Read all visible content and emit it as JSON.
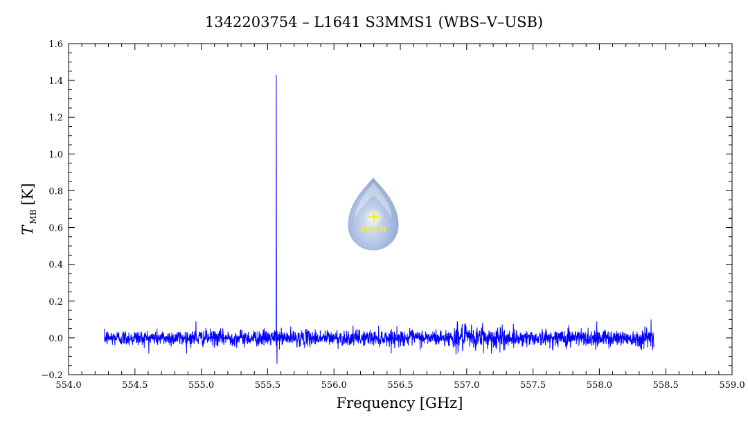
{
  "chart_data": {
    "type": "line",
    "title": "1342203754 – L1641 S3MMS1 (WBS–V–USB)",
    "xlabel": "Frequency [GHz]",
    "ylabel_symbol": "T",
    "ylabel_subscript": "MB",
    "ylabel_unit": "[K]",
    "xlim": [
      554.0,
      559.0
    ],
    "ylim": [
      -0.2,
      1.6
    ],
    "x_ticks": [
      554.0,
      554.5,
      555.0,
      555.5,
      556.0,
      556.5,
      557.0,
      557.5,
      558.0,
      558.5,
      559.0
    ],
    "x_tick_labels": [
      "554.0",
      "554.5",
      "555.0",
      "555.5",
      "556.0",
      "556.5",
      "557.0",
      "557.5",
      "558.0",
      "558.5",
      "559.0"
    ],
    "y_ticks": [
      -0.2,
      0.0,
      0.2,
      0.4,
      0.6,
      0.8,
      1.0,
      1.2,
      1.4,
      1.6
    ],
    "y_tick_labels": [
      "−0.2",
      "0.0",
      "0.2",
      "0.4",
      "0.6",
      "0.8",
      "1.0",
      "1.2",
      "1.4",
      "1.6"
    ],
    "grid": false,
    "series": [
      {
        "color": "#0000ff",
        "x_start": 554.27,
        "x_end": 558.41,
        "baseline": 0.0,
        "noise_rms": 0.022,
        "features": [
          {
            "x": 555.565,
            "y": 1.43
          },
          {
            "x": 555.57,
            "y": -0.14
          },
          {
            "x": 554.27,
            "y": 0.05
          },
          {
            "x": 554.96,
            "y": 0.09
          },
          {
            "x": 556.93,
            "y": 0.09
          },
          {
            "x": 557.12,
            "y": 0.08
          },
          {
            "x": 557.77,
            "y": 0.07
          },
          {
            "x": 557.98,
            "y": 0.09
          },
          {
            "x": 558.39,
            "y": 0.1
          },
          {
            "x": 558.4,
            "y": -0.06
          },
          {
            "x": 556.92,
            "y": -0.09
          },
          {
            "x": 557.25,
            "y": -0.08
          }
        ]
      }
    ]
  },
  "logo": {
    "text": "WISH",
    "fill_color": "#aabde0",
    "text_color": "#f0e832"
  }
}
